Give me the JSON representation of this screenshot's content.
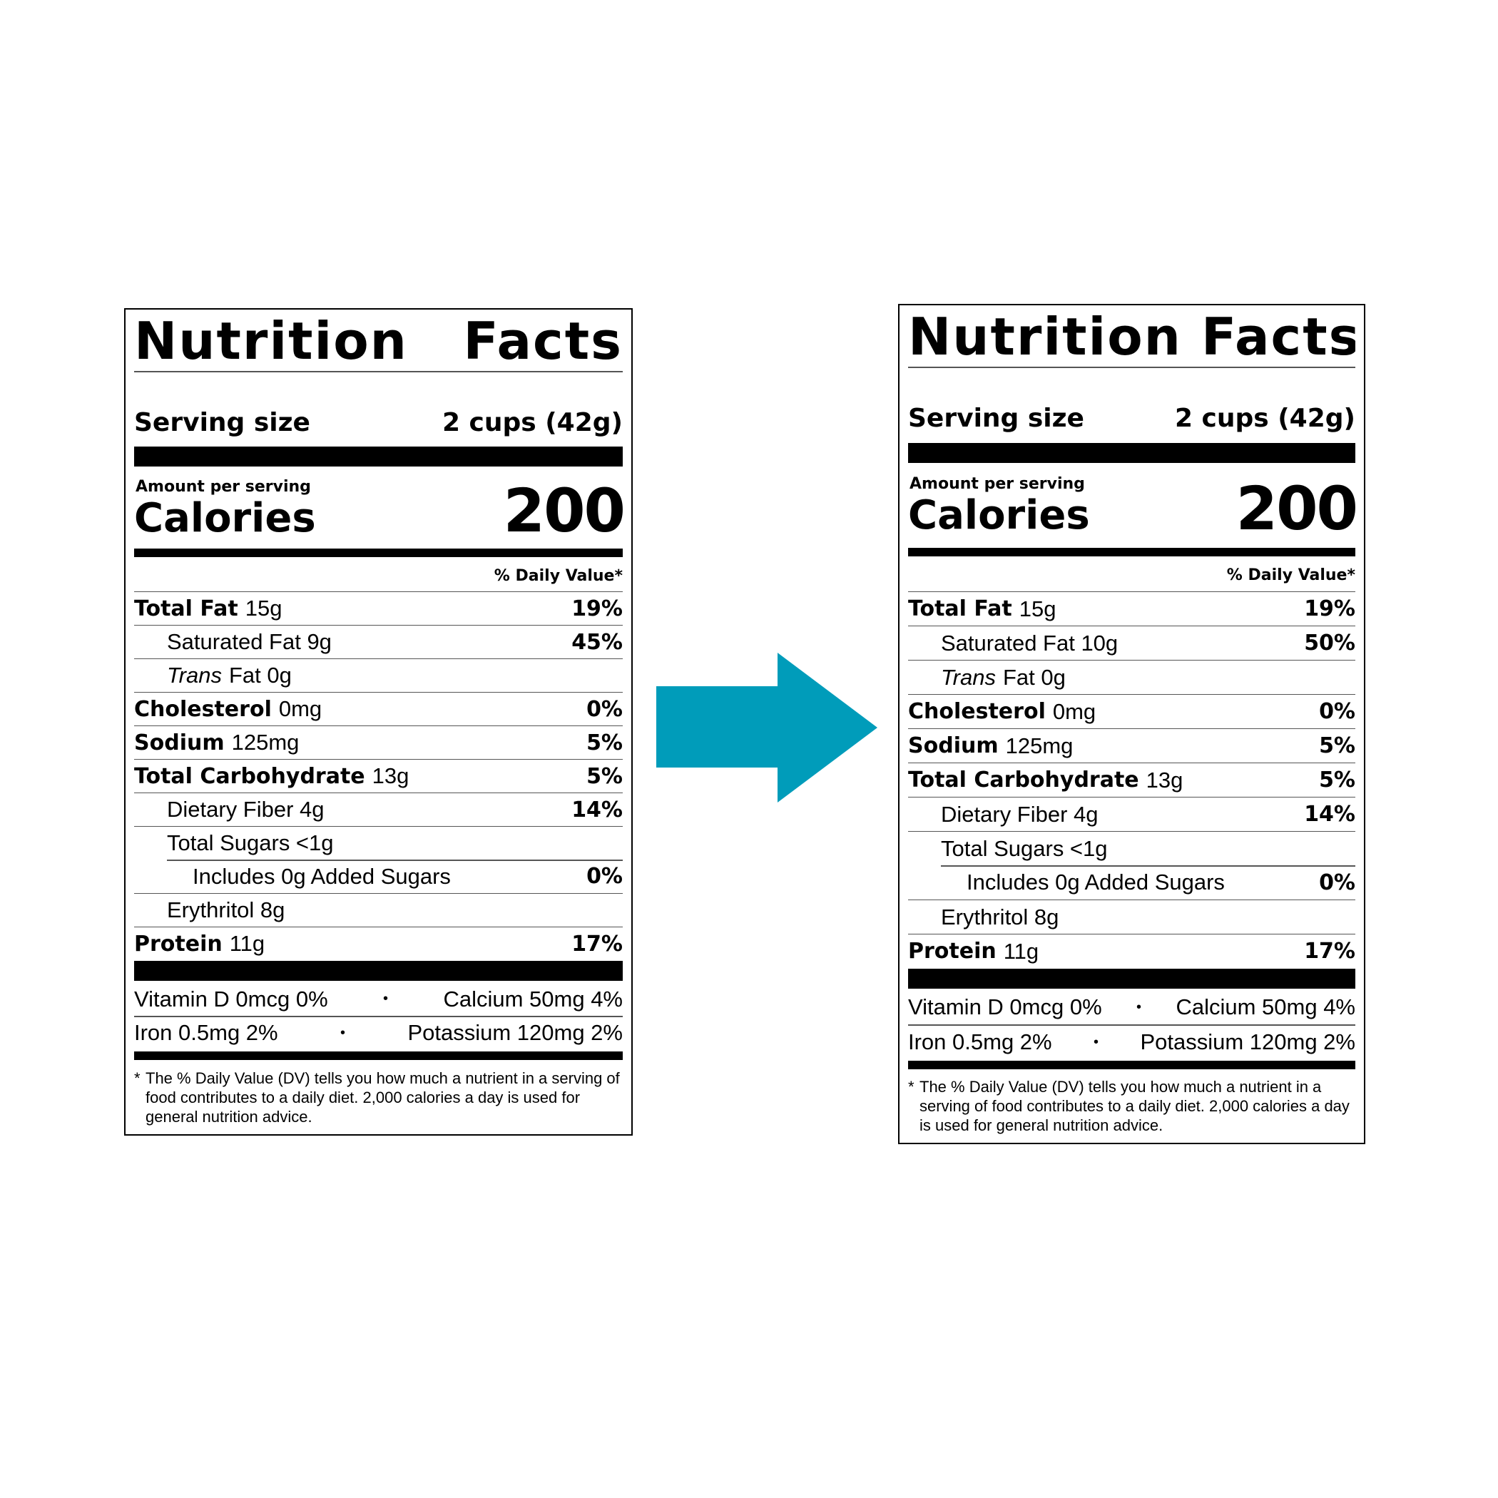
{
  "arrow": {
    "icon": "right-arrow-icon",
    "color": "#009CBA"
  },
  "labels": [
    {
      "title": "Nutrition Facts",
      "serving_label": "Serving size",
      "serving_value": "2 cups (42g)",
      "amount_per_serving": "Amount per serving",
      "calories_label": "Calories",
      "calories_value": "200",
      "daily_value_header": "% Daily Value*",
      "total_fat": {
        "name": "Total Fat",
        "amount": "15g",
        "dv": "19%"
      },
      "saturated_fat": {
        "name": "Saturated Fat 9g",
        "dv": "45%"
      },
      "trans_fat": {
        "name_italic": "Trans",
        "name_rest": "Fat 0g"
      },
      "cholesterol": {
        "name": "Cholesterol",
        "amount": "0mg",
        "dv": "0%"
      },
      "sodium": {
        "name": "Sodium",
        "amount": "125mg",
        "dv": "5%"
      },
      "total_carbohydrate": {
        "name": "Total Carbohydrate",
        "amount": "13g",
        "dv": "5%"
      },
      "dietary_fiber": {
        "name": "Dietary Fiber 4g",
        "dv": "14%"
      },
      "total_sugars": {
        "name": "Total Sugars <1g"
      },
      "added_sugars": {
        "name": "Includes 0g Added Sugars",
        "dv": "0%"
      },
      "erythritol": {
        "name": "Erythritol 8g"
      },
      "protein": {
        "name": "Protein",
        "amount": "11g",
        "dv": "17%"
      },
      "vitamin_d": "Vitamin D 0mcg 0%",
      "calcium": "Calcium 50mg 4%",
      "iron": "Iron 0.5mg 2%",
      "potassium": "Potassium 120mg 2%",
      "bullet": "•",
      "footnote_asterisk": "*",
      "footnote": "The % Daily Value (DV) tells you how much a nutrient in a serving of food contributes to a daily diet. 2,000 calories a day is used for general nutrition advice."
    },
    {
      "title": "Nutrition Facts",
      "serving_label": "Serving size",
      "serving_value": "2 cups (42g)",
      "amount_per_serving": "Amount per serving",
      "calories_label": "Calories",
      "calories_value": "200",
      "daily_value_header": "% Daily Value*",
      "total_fat": {
        "name": "Total Fat",
        "amount": "15g",
        "dv": "19%"
      },
      "saturated_fat": {
        "name": "Saturated Fat 10g",
        "dv": "50%"
      },
      "trans_fat": {
        "name_italic": "Trans",
        "name_rest": "Fat 0g"
      },
      "cholesterol": {
        "name": "Cholesterol",
        "amount": "0mg",
        "dv": "0%"
      },
      "sodium": {
        "name": "Sodium",
        "amount": "125mg",
        "dv": "5%"
      },
      "total_carbohydrate": {
        "name": "Total Carbohydrate",
        "amount": "13g",
        "dv": "5%"
      },
      "dietary_fiber": {
        "name": "Dietary Fiber 4g",
        "dv": "14%"
      },
      "total_sugars": {
        "name": "Total Sugars <1g"
      },
      "added_sugars": {
        "name": "Includes 0g Added Sugars",
        "dv": "0%"
      },
      "erythritol": {
        "name": "Erythritol 8g"
      },
      "protein": {
        "name": "Protein",
        "amount": "11g",
        "dv": "17%"
      },
      "vitamin_d": "Vitamin D 0mcg 0%",
      "calcium": "Calcium 50mg 4%",
      "iron": "Iron 0.5mg 2%",
      "potassium": "Potassium 120mg 2%",
      "bullet": "•",
      "footnote_asterisk": "*",
      "footnote": "The % Daily Value (DV) tells you how much a nutrient in a serving of food contributes to a daily diet. 2,000 calories a day is used for general nutrition advice."
    }
  ]
}
